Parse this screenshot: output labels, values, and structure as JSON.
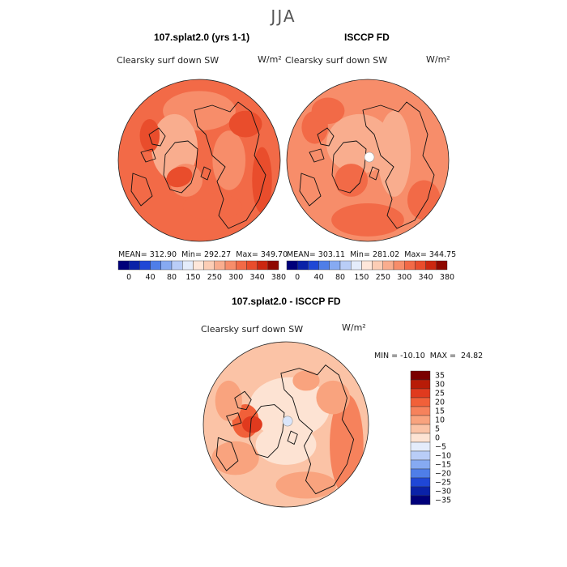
{
  "season": "JJA",
  "variable": "Clearsky surf down SW",
  "units": "W/m²",
  "colors": {
    "abs_palette": [
      "#00007a",
      "#0a22a8",
      "#1f47d6",
      "#4f7ee8",
      "#86aaf2",
      "#b9cdf7",
      "#e4ecfb",
      "#ffe7da",
      "#fccdb5",
      "#f9ad8e",
      "#f78d6a",
      "#f26a47",
      "#e94d2c",
      "#cc2710",
      "#8f0800"
    ],
    "diff_palette": [
      "#00007a",
      "#0a22a8",
      "#1f47d6",
      "#4f7ee8",
      "#86aaf2",
      "#b9cdf7",
      "#e4ecfb",
      "#fde3d3",
      "#fbc3a6",
      "#f9a37e",
      "#f6825c",
      "#f16039",
      "#e03a1e",
      "#b81b07",
      "#7a0000"
    ],
    "coast": "#111111"
  },
  "chart_data": [
    {
      "type": "heatmap",
      "projection": "north polar stereographic",
      "title": "107.splat2.0 (yrs 1-1)",
      "variable": "Clearsky surf down SW",
      "units": "W/m²",
      "mean_label": "MEAN=",
      "mean": "312.90",
      "min_label": "Min=",
      "min": "292.27",
      "max_label": "Max=",
      "max": "349.70",
      "colorbar_ticks": [
        "0",
        "40",
        "80",
        "150",
        "250",
        "300",
        "340",
        "380"
      ],
      "levels": [
        0,
        20,
        40,
        60,
        80,
        100,
        150,
        200,
        250,
        275,
        300,
        320,
        340,
        360,
        380
      ]
    },
    {
      "type": "heatmap",
      "projection": "north polar stereographic",
      "title": "ISCCP FD",
      "variable": "Clearsky surf down SW",
      "units": "W/m²",
      "mean_label": "MEAN=",
      "mean": "303.11",
      "min_label": "Min=",
      "min": "281.02",
      "max_label": "Max=",
      "max": "344.75",
      "colorbar_ticks": [
        "0",
        "40",
        "80",
        "150",
        "250",
        "300",
        "340",
        "380"
      ],
      "levels": [
        0,
        20,
        40,
        60,
        80,
        100,
        150,
        200,
        250,
        275,
        300,
        320,
        340,
        360,
        380
      ]
    },
    {
      "type": "heatmap",
      "projection": "north polar stereographic",
      "title": "107.splat2.0 - ISCCP FD",
      "variable": "Clearsky surf down SW",
      "units": "W/m²",
      "min_label": "MIN =",
      "min": "-10.10",
      "max_label": "MAX =",
      "max": "24.82",
      "colorbar_ticks": [
        "35",
        "30",
        "25",
        "20",
        "15",
        "10",
        "5",
        "0",
        "−5",
        "−10",
        "−15",
        "−20",
        "−25",
        "−30",
        "−35"
      ]
    }
  ]
}
